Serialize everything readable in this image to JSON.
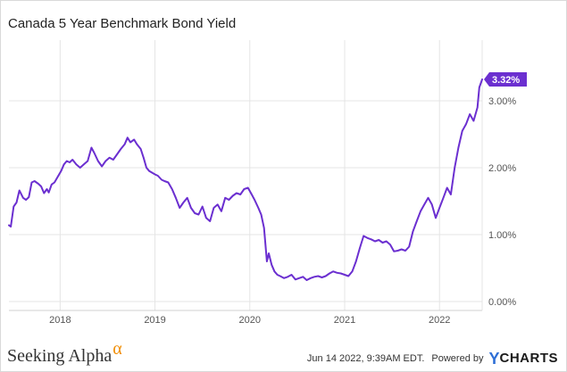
{
  "chart_data": {
    "type": "line",
    "title": "Canada 5 Year Benchmark Bond Yield",
    "y_unit": "%",
    "ylim": [
      0,
      3.4
    ],
    "y_ticks": [
      "0.00%",
      "1.00%",
      "2.00%",
      "3.00%"
    ],
    "y_tick_values": [
      0,
      1,
      2,
      3
    ],
    "x_ticks": [
      "2018",
      "2019",
      "2020",
      "2021",
      "2022"
    ],
    "x_tick_values": [
      2018,
      2019,
      2020,
      2021,
      2022
    ],
    "grid": true,
    "legend": "none",
    "last_value_label": "3.32%",
    "series": [
      {
        "color": "#6b2fd0",
        "points": [
          [
            2017.46,
            1.14
          ],
          [
            2017.48,
            1.12
          ],
          [
            2017.51,
            1.42
          ],
          [
            2017.54,
            1.48
          ],
          [
            2017.57,
            1.66
          ],
          [
            2017.61,
            1.55
          ],
          [
            2017.64,
            1.52
          ],
          [
            2017.67,
            1.56
          ],
          [
            2017.7,
            1.78
          ],
          [
            2017.73,
            1.8
          ],
          [
            2017.77,
            1.76
          ],
          [
            2017.8,
            1.72
          ],
          [
            2017.83,
            1.62
          ],
          [
            2017.86,
            1.68
          ],
          [
            2017.88,
            1.63
          ],
          [
            2017.91,
            1.75
          ],
          [
            2017.94,
            1.78
          ],
          [
            2018.01,
            1.95
          ],
          [
            2018.04,
            2.05
          ],
          [
            2018.07,
            2.1
          ],
          [
            2018.1,
            2.08
          ],
          [
            2018.13,
            2.12
          ],
          [
            2018.17,
            2.05
          ],
          [
            2018.21,
            2.0
          ],
          [
            2018.25,
            2.05
          ],
          [
            2018.29,
            2.1
          ],
          [
            2018.33,
            2.3
          ],
          [
            2018.36,
            2.22
          ],
          [
            2018.4,
            2.1
          ],
          [
            2018.44,
            2.02
          ],
          [
            2018.48,
            2.1
          ],
          [
            2018.52,
            2.15
          ],
          [
            2018.56,
            2.12
          ],
          [
            2018.6,
            2.2
          ],
          [
            2018.64,
            2.28
          ],
          [
            2018.68,
            2.35
          ],
          [
            2018.71,
            2.45
          ],
          [
            2018.74,
            2.38
          ],
          [
            2018.78,
            2.42
          ],
          [
            2018.81,
            2.35
          ],
          [
            2018.85,
            2.28
          ],
          [
            2018.88,
            2.15
          ],
          [
            2018.91,
            2.0
          ],
          [
            2018.94,
            1.95
          ],
          [
            2019.0,
            1.9
          ],
          [
            2019.03,
            1.88
          ],
          [
            2019.07,
            1.82
          ],
          [
            2019.1,
            1.8
          ],
          [
            2019.14,
            1.78
          ],
          [
            2019.18,
            1.68
          ],
          [
            2019.22,
            1.55
          ],
          [
            2019.26,
            1.4
          ],
          [
            2019.3,
            1.48
          ],
          [
            2019.34,
            1.55
          ],
          [
            2019.38,
            1.4
          ],
          [
            2019.42,
            1.32
          ],
          [
            2019.46,
            1.3
          ],
          [
            2019.5,
            1.42
          ],
          [
            2019.54,
            1.25
          ],
          [
            2019.58,
            1.2
          ],
          [
            2019.62,
            1.4
          ],
          [
            2019.66,
            1.45
          ],
          [
            2019.7,
            1.35
          ],
          [
            2019.74,
            1.55
          ],
          [
            2019.78,
            1.52
          ],
          [
            2019.82,
            1.58
          ],
          [
            2019.86,
            1.62
          ],
          [
            2019.9,
            1.6
          ],
          [
            2019.94,
            1.68
          ],
          [
            2019.98,
            1.7
          ],
          [
            2020.02,
            1.6
          ],
          [
            2020.05,
            1.52
          ],
          [
            2020.09,
            1.4
          ],
          [
            2020.12,
            1.3
          ],
          [
            2020.15,
            1.1
          ],
          [
            2020.18,
            0.6
          ],
          [
            2020.2,
            0.72
          ],
          [
            2020.23,
            0.55
          ],
          [
            2020.26,
            0.45
          ],
          [
            2020.29,
            0.4
          ],
          [
            2020.32,
            0.38
          ],
          [
            2020.36,
            0.35
          ],
          [
            2020.4,
            0.37
          ],
          [
            2020.44,
            0.4
          ],
          [
            2020.48,
            0.33
          ],
          [
            2020.52,
            0.35
          ],
          [
            2020.56,
            0.37
          ],
          [
            2020.6,
            0.32
          ],
          [
            2020.64,
            0.35
          ],
          [
            2020.68,
            0.37
          ],
          [
            2020.72,
            0.38
          ],
          [
            2020.76,
            0.36
          ],
          [
            2020.8,
            0.38
          ],
          [
            2020.84,
            0.42
          ],
          [
            2020.88,
            0.45
          ],
          [
            2020.92,
            0.43
          ],
          [
            2020.96,
            0.42
          ],
          [
            2021.0,
            0.4
          ],
          [
            2021.04,
            0.38
          ],
          [
            2021.08,
            0.45
          ],
          [
            2021.12,
            0.6
          ],
          [
            2021.16,
            0.8
          ],
          [
            2021.2,
            0.98
          ],
          [
            2021.24,
            0.95
          ],
          [
            2021.28,
            0.93
          ],
          [
            2021.32,
            0.9
          ],
          [
            2021.36,
            0.92
          ],
          [
            2021.4,
            0.88
          ],
          [
            2021.44,
            0.9
          ],
          [
            2021.48,
            0.85
          ],
          [
            2021.52,
            0.75
          ],
          [
            2021.56,
            0.76
          ],
          [
            2021.6,
            0.78
          ],
          [
            2021.64,
            0.76
          ],
          [
            2021.68,
            0.82
          ],
          [
            2021.72,
            1.05
          ],
          [
            2021.76,
            1.2
          ],
          [
            2021.8,
            1.35
          ],
          [
            2021.84,
            1.45
          ],
          [
            2021.88,
            1.55
          ],
          [
            2021.92,
            1.45
          ],
          [
            2021.96,
            1.25
          ],
          [
            2022.0,
            1.4
          ],
          [
            2022.04,
            1.55
          ],
          [
            2022.08,
            1.7
          ],
          [
            2022.12,
            1.6
          ],
          [
            2022.16,
            2.0
          ],
          [
            2022.2,
            2.3
          ],
          [
            2022.24,
            2.55
          ],
          [
            2022.28,
            2.65
          ],
          [
            2022.32,
            2.8
          ],
          [
            2022.36,
            2.7
          ],
          [
            2022.4,
            2.9
          ],
          [
            2022.42,
            3.2
          ],
          [
            2022.45,
            3.32
          ]
        ]
      }
    ]
  },
  "footer": {
    "brand": "Seeking Alpha",
    "brand_mark": "α",
    "timestamp": "Jun 14 2022, 9:39AM EDT.",
    "powered_by": "Powered by",
    "ycharts_y": "Y",
    "ycharts_rest": "CHARTS"
  }
}
